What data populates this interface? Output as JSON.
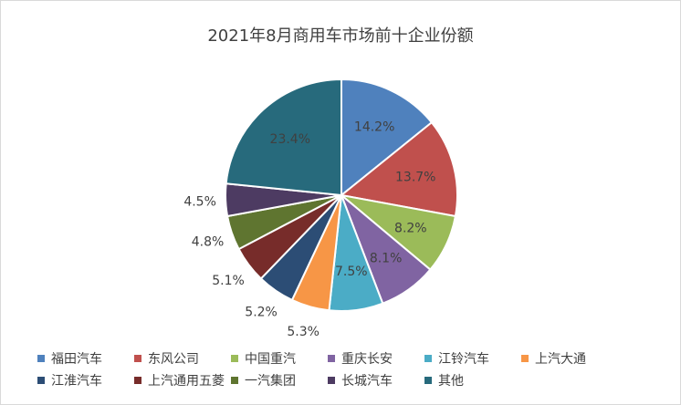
{
  "chart_data": {
    "type": "pie",
    "title": "2021年8月商用车市场前十企业份额",
    "slices": [
      {
        "name": "福田汽车",
        "value": 14.2,
        "label": "14.2%",
        "color": "#4F81BD"
      },
      {
        "name": "东风公司",
        "value": 13.7,
        "label": "13.7%",
        "color": "#C0504D"
      },
      {
        "name": "中国重汽",
        "value": 8.2,
        "label": "8.2%",
        "color": "#9BBB59"
      },
      {
        "name": "重庆长安",
        "value": 8.1,
        "label": "8.1%",
        "color": "#8064A2"
      },
      {
        "name": "江铃汽车",
        "value": 7.5,
        "label": "7.5%",
        "color": "#4BACC6"
      },
      {
        "name": "上汽大通",
        "value": 5.3,
        "label": "5.3%",
        "color": "#F79646"
      },
      {
        "name": "江淮汽车",
        "value": 5.2,
        "label": "5.2%",
        "color": "#2C4D75"
      },
      {
        "name": "上汽通用五菱",
        "value": 5.1,
        "label": "5.1%",
        "color": "#772C2A"
      },
      {
        "name": "一汽集团",
        "value": 4.8,
        "label": "4.8%",
        "color": "#5F7530"
      },
      {
        "name": "长城汽车",
        "value": 4.5,
        "label": "4.5%",
        "color": "#4D3B62"
      },
      {
        "name": "其他",
        "value": 23.4,
        "label": "23.4%",
        "color": "#276A7C"
      }
    ],
    "legend_position": "bottom"
  }
}
